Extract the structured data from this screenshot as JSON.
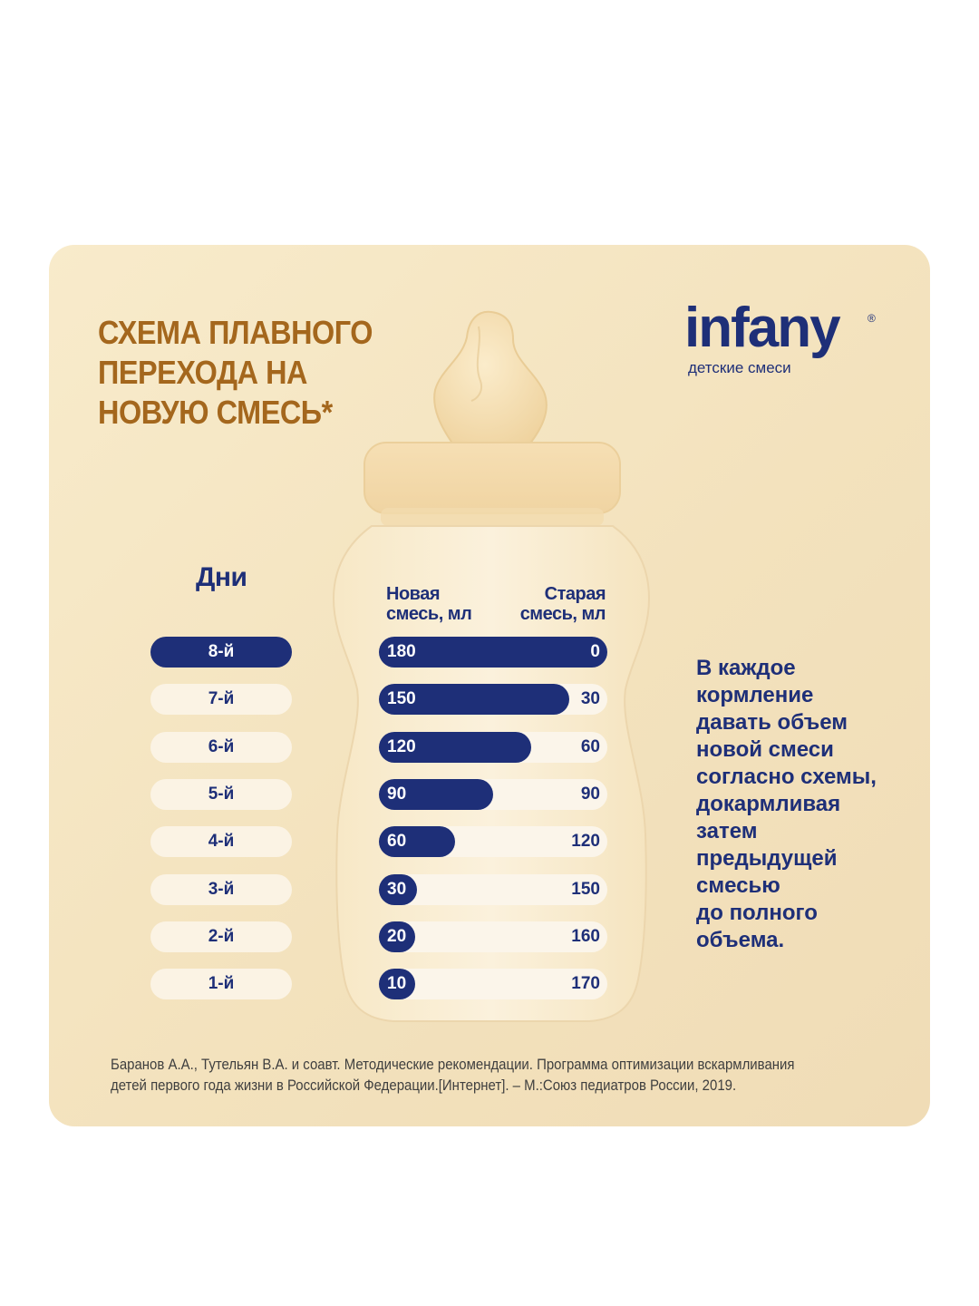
{
  "title_lines": [
    "СХЕМА ПЛАВНОГО",
    "ПЕРЕХОДА НА",
    "НОВУЮ СМЕСЬ*"
  ],
  "logo": {
    "name": "infany",
    "tagline": "детские смеси"
  },
  "days_label": "Дни",
  "colors": {
    "navy": "#1e2f78",
    "gold": "#a4671d",
    "background": "#f5e6c4"
  },
  "instruction_lines": [
    "В каждое",
    "кормление",
    "давать объем",
    "новой смеси",
    "согласно схемы,",
    "докармливая",
    "затем",
    "предыдущей",
    "смесью",
    "до полного",
    "объема."
  ],
  "footnote_lines": [
    "Баранов А.А., Тутельян В.А. и соавт. Методические рекомендации. Программа оптимизации вскармливания",
    "детей первого года жизни в Российской Федерации.[Интернет]. – М.:Союз педиатров России, 2019."
  ],
  "chart_data": {
    "type": "bar",
    "orientation": "horizontal",
    "stacked": true,
    "total": 180,
    "categories": [
      "8-й",
      "7-й",
      "6-й",
      "5-й",
      "4-й",
      "3-й",
      "2-й",
      "1-й"
    ],
    "series": [
      {
        "name": "Новая смесь, мл",
        "values": [
          180,
          150,
          120,
          90,
          60,
          30,
          20,
          10
        ]
      },
      {
        "name": "Старая смесь, мл",
        "values": [
          0,
          30,
          60,
          90,
          120,
          150,
          160,
          170
        ]
      }
    ],
    "col_new_lines": [
      "Новая",
      "смесь, мл"
    ],
    "col_old_lines": [
      "Старая",
      "смесь, мл"
    ],
    "active_category": "8-й"
  }
}
